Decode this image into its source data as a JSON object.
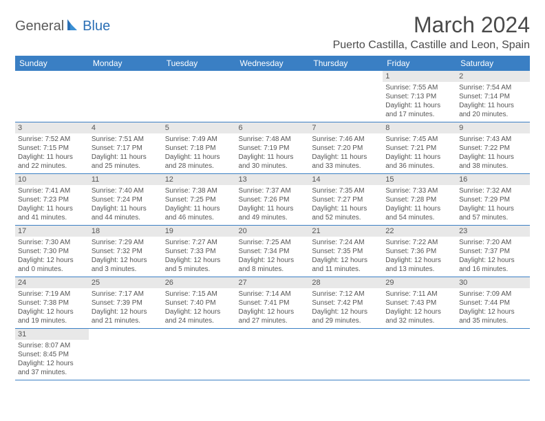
{
  "logo": {
    "text1": "General",
    "text2": "Blue"
  },
  "title": "March 2024",
  "location": "Puerto Castilla, Castille and Leon, Spain",
  "colors": {
    "header_bg": "#3a7fc4",
    "header_fg": "#ffffff",
    "daynum_bg": "#e8e8e8",
    "text": "#555555",
    "rule": "#3a7fc4"
  },
  "weekdays": [
    "Sunday",
    "Monday",
    "Tuesday",
    "Wednesday",
    "Thursday",
    "Friday",
    "Saturday"
  ],
  "weeks": [
    [
      {
        "n": "",
        "l1": "",
        "l2": "",
        "l3": "",
        "l4": ""
      },
      {
        "n": "",
        "l1": "",
        "l2": "",
        "l3": "",
        "l4": ""
      },
      {
        "n": "",
        "l1": "",
        "l2": "",
        "l3": "",
        "l4": ""
      },
      {
        "n": "",
        "l1": "",
        "l2": "",
        "l3": "",
        "l4": ""
      },
      {
        "n": "",
        "l1": "",
        "l2": "",
        "l3": "",
        "l4": ""
      },
      {
        "n": "1",
        "l1": "Sunrise: 7:55 AM",
        "l2": "Sunset: 7:13 PM",
        "l3": "Daylight: 11 hours",
        "l4": "and 17 minutes."
      },
      {
        "n": "2",
        "l1": "Sunrise: 7:54 AM",
        "l2": "Sunset: 7:14 PM",
        "l3": "Daylight: 11 hours",
        "l4": "and 20 minutes."
      }
    ],
    [
      {
        "n": "3",
        "l1": "Sunrise: 7:52 AM",
        "l2": "Sunset: 7:15 PM",
        "l3": "Daylight: 11 hours",
        "l4": "and 22 minutes."
      },
      {
        "n": "4",
        "l1": "Sunrise: 7:51 AM",
        "l2": "Sunset: 7:17 PM",
        "l3": "Daylight: 11 hours",
        "l4": "and 25 minutes."
      },
      {
        "n": "5",
        "l1": "Sunrise: 7:49 AM",
        "l2": "Sunset: 7:18 PM",
        "l3": "Daylight: 11 hours",
        "l4": "and 28 minutes."
      },
      {
        "n": "6",
        "l1": "Sunrise: 7:48 AM",
        "l2": "Sunset: 7:19 PM",
        "l3": "Daylight: 11 hours",
        "l4": "and 30 minutes."
      },
      {
        "n": "7",
        "l1": "Sunrise: 7:46 AM",
        "l2": "Sunset: 7:20 PM",
        "l3": "Daylight: 11 hours",
        "l4": "and 33 minutes."
      },
      {
        "n": "8",
        "l1": "Sunrise: 7:45 AM",
        "l2": "Sunset: 7:21 PM",
        "l3": "Daylight: 11 hours",
        "l4": "and 36 minutes."
      },
      {
        "n": "9",
        "l1": "Sunrise: 7:43 AM",
        "l2": "Sunset: 7:22 PM",
        "l3": "Daylight: 11 hours",
        "l4": "and 38 minutes."
      }
    ],
    [
      {
        "n": "10",
        "l1": "Sunrise: 7:41 AM",
        "l2": "Sunset: 7:23 PM",
        "l3": "Daylight: 11 hours",
        "l4": "and 41 minutes."
      },
      {
        "n": "11",
        "l1": "Sunrise: 7:40 AM",
        "l2": "Sunset: 7:24 PM",
        "l3": "Daylight: 11 hours",
        "l4": "and 44 minutes."
      },
      {
        "n": "12",
        "l1": "Sunrise: 7:38 AM",
        "l2": "Sunset: 7:25 PM",
        "l3": "Daylight: 11 hours",
        "l4": "and 46 minutes."
      },
      {
        "n": "13",
        "l1": "Sunrise: 7:37 AM",
        "l2": "Sunset: 7:26 PM",
        "l3": "Daylight: 11 hours",
        "l4": "and 49 minutes."
      },
      {
        "n": "14",
        "l1": "Sunrise: 7:35 AM",
        "l2": "Sunset: 7:27 PM",
        "l3": "Daylight: 11 hours",
        "l4": "and 52 minutes."
      },
      {
        "n": "15",
        "l1": "Sunrise: 7:33 AM",
        "l2": "Sunset: 7:28 PM",
        "l3": "Daylight: 11 hours",
        "l4": "and 54 minutes."
      },
      {
        "n": "16",
        "l1": "Sunrise: 7:32 AM",
        "l2": "Sunset: 7:29 PM",
        "l3": "Daylight: 11 hours",
        "l4": "and 57 minutes."
      }
    ],
    [
      {
        "n": "17",
        "l1": "Sunrise: 7:30 AM",
        "l2": "Sunset: 7:30 PM",
        "l3": "Daylight: 12 hours",
        "l4": "and 0 minutes."
      },
      {
        "n": "18",
        "l1": "Sunrise: 7:29 AM",
        "l2": "Sunset: 7:32 PM",
        "l3": "Daylight: 12 hours",
        "l4": "and 3 minutes."
      },
      {
        "n": "19",
        "l1": "Sunrise: 7:27 AM",
        "l2": "Sunset: 7:33 PM",
        "l3": "Daylight: 12 hours",
        "l4": "and 5 minutes."
      },
      {
        "n": "20",
        "l1": "Sunrise: 7:25 AM",
        "l2": "Sunset: 7:34 PM",
        "l3": "Daylight: 12 hours",
        "l4": "and 8 minutes."
      },
      {
        "n": "21",
        "l1": "Sunrise: 7:24 AM",
        "l2": "Sunset: 7:35 PM",
        "l3": "Daylight: 12 hours",
        "l4": "and 11 minutes."
      },
      {
        "n": "22",
        "l1": "Sunrise: 7:22 AM",
        "l2": "Sunset: 7:36 PM",
        "l3": "Daylight: 12 hours",
        "l4": "and 13 minutes."
      },
      {
        "n": "23",
        "l1": "Sunrise: 7:20 AM",
        "l2": "Sunset: 7:37 PM",
        "l3": "Daylight: 12 hours",
        "l4": "and 16 minutes."
      }
    ],
    [
      {
        "n": "24",
        "l1": "Sunrise: 7:19 AM",
        "l2": "Sunset: 7:38 PM",
        "l3": "Daylight: 12 hours",
        "l4": "and 19 minutes."
      },
      {
        "n": "25",
        "l1": "Sunrise: 7:17 AM",
        "l2": "Sunset: 7:39 PM",
        "l3": "Daylight: 12 hours",
        "l4": "and 21 minutes."
      },
      {
        "n": "26",
        "l1": "Sunrise: 7:15 AM",
        "l2": "Sunset: 7:40 PM",
        "l3": "Daylight: 12 hours",
        "l4": "and 24 minutes."
      },
      {
        "n": "27",
        "l1": "Sunrise: 7:14 AM",
        "l2": "Sunset: 7:41 PM",
        "l3": "Daylight: 12 hours",
        "l4": "and 27 minutes."
      },
      {
        "n": "28",
        "l1": "Sunrise: 7:12 AM",
        "l2": "Sunset: 7:42 PM",
        "l3": "Daylight: 12 hours",
        "l4": "and 29 minutes."
      },
      {
        "n": "29",
        "l1": "Sunrise: 7:11 AM",
        "l2": "Sunset: 7:43 PM",
        "l3": "Daylight: 12 hours",
        "l4": "and 32 minutes."
      },
      {
        "n": "30",
        "l1": "Sunrise: 7:09 AM",
        "l2": "Sunset: 7:44 PM",
        "l3": "Daylight: 12 hours",
        "l4": "and 35 minutes."
      }
    ],
    [
      {
        "n": "31",
        "l1": "Sunrise: 8:07 AM",
        "l2": "Sunset: 8:45 PM",
        "l3": "Daylight: 12 hours",
        "l4": "and 37 minutes."
      },
      {
        "n": "",
        "l1": "",
        "l2": "",
        "l3": "",
        "l4": ""
      },
      {
        "n": "",
        "l1": "",
        "l2": "",
        "l3": "",
        "l4": ""
      },
      {
        "n": "",
        "l1": "",
        "l2": "",
        "l3": "",
        "l4": ""
      },
      {
        "n": "",
        "l1": "",
        "l2": "",
        "l3": "",
        "l4": ""
      },
      {
        "n": "",
        "l1": "",
        "l2": "",
        "l3": "",
        "l4": ""
      },
      {
        "n": "",
        "l1": "",
        "l2": "",
        "l3": "",
        "l4": ""
      }
    ]
  ]
}
